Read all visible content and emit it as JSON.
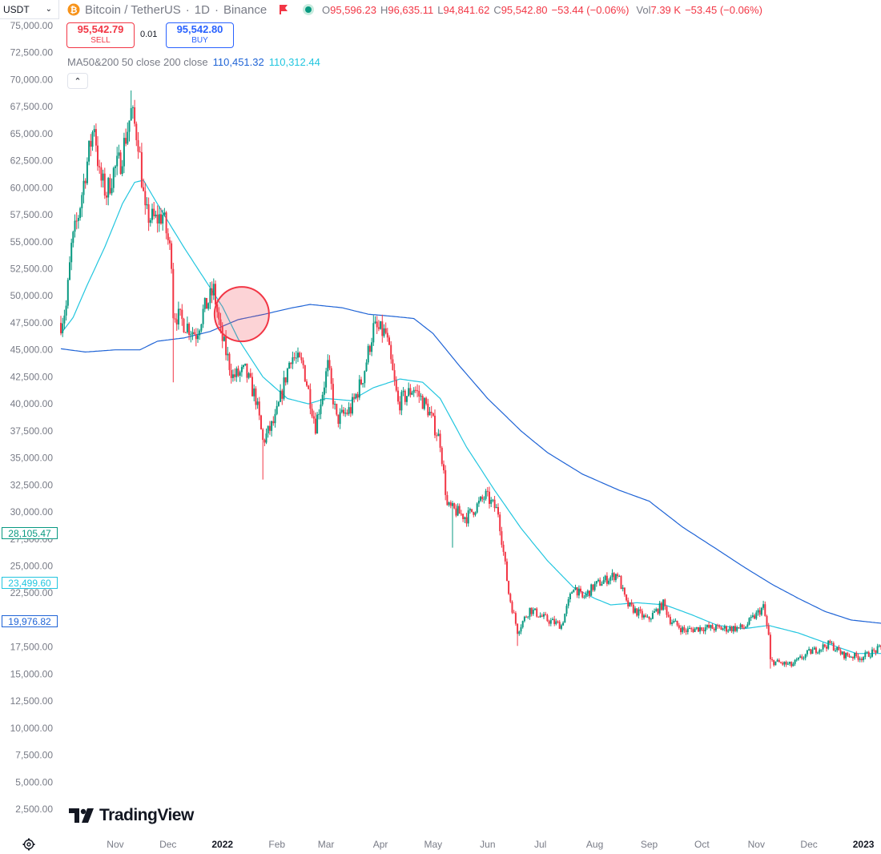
{
  "header": {
    "currency": "USDT",
    "symbol_name": "Bitcoin / TetherUS",
    "interval": "1D",
    "exchange": "Binance",
    "ohlc": {
      "o_label": "O",
      "o": "95,596.23",
      "h_label": "H",
      "h": "96,635.11",
      "l_label": "L",
      "l": "94,841.62",
      "c_label": "C",
      "c": "95,542.80",
      "change": "−53.44 (−0.06%)",
      "vol_label": "Vol",
      "vol": "7.39 K",
      "vol_change": "−53.45 (−0.06%)"
    }
  },
  "trade": {
    "sell_price": "95,542.79",
    "sell_label": "SELL",
    "spread": "0.01",
    "buy_price": "95,542.80",
    "buy_label": "BUY"
  },
  "indicator": {
    "label": "MA50&200 50 close 200 close",
    "ma50_value": "110,451.32",
    "ma200_value": "110,312.44",
    "ma50_color": "#1e63d6",
    "ma200_color": "#22c6df"
  },
  "price_tags": [
    {
      "text": "28,105.47",
      "color": "#089981"
    },
    {
      "text": "23,499.60",
      "color": "#22c6df"
    },
    {
      "text": "19,976.82",
      "color": "#1e63d6"
    }
  ],
  "logo_text": "TradingView",
  "colors": {
    "up": "#089981",
    "down": "#f23645",
    "ma_fast": "#22c6df",
    "ma_slow": "#1e63d6",
    "highlight": "#f23645"
  },
  "chart_data": {
    "type": "candlestick",
    "y_ticks": [
      "75,000.00",
      "72,500.00",
      "70,000.00",
      "67,500.00",
      "65,000.00",
      "62,500.00",
      "60,000.00",
      "57,500.00",
      "55,000.00",
      "52,500.00",
      "50,000.00",
      "47,500.00",
      "45,000.00",
      "42,500.00",
      "40,000.00",
      "37,500.00",
      "35,000.00",
      "32,500.00",
      "30,000.00",
      "27,500.00",
      "25,000.00",
      "22,500.00",
      "20,000.00",
      "17,500.00",
      "15,000.00",
      "12,500.00",
      "10,000.00",
      "7,500.00",
      "5,000.00",
      "2,500.00"
    ],
    "ylim": [
      1000,
      76000
    ],
    "x_ticks": [
      {
        "label": "Nov",
        "date": "2021-11-01"
      },
      {
        "label": "Dec",
        "date": "2021-12-01"
      },
      {
        "label": "2022",
        "date": "2022-01-01",
        "bold": true
      },
      {
        "label": "Feb",
        "date": "2022-02-01"
      },
      {
        "label": "Mar",
        "date": "2022-03-01"
      },
      {
        "label": "Apr",
        "date": "2022-04-01"
      },
      {
        "label": "May",
        "date": "2022-05-01"
      },
      {
        "label": "Jun",
        "date": "2022-06-01"
      },
      {
        "label": "Jul",
        "date": "2022-07-01"
      },
      {
        "label": "Aug",
        "date": "2022-08-01"
      },
      {
        "label": "Sep",
        "date": "2022-09-01"
      },
      {
        "label": "Oct",
        "date": "2022-10-01"
      },
      {
        "label": "Nov",
        "date": "2022-11-01"
      },
      {
        "label": "Dec",
        "date": "2022-12-01"
      },
      {
        "label": "2023",
        "date": "2023-01-01",
        "bold": true
      }
    ],
    "x_start": "2021-10-01",
    "x_end": "2023-01-11",
    "close_anchors": [
      [
        "2021-10-01",
        47500
      ],
      [
        "2021-10-04",
        49000
      ],
      [
        "2021-10-07",
        54500
      ],
      [
        "2021-10-11",
        57500
      ],
      [
        "2021-10-15",
        61500
      ],
      [
        "2021-10-20",
        66000
      ],
      [
        "2021-10-23",
        61000
      ],
      [
        "2021-10-27",
        59500
      ],
      [
        "2021-10-31",
        61500
      ],
      [
        "2021-11-04",
        62500
      ],
      [
        "2021-11-10",
        67000
      ],
      [
        "2021-11-14",
        64500
      ],
      [
        "2021-11-18",
        57500
      ],
      [
        "2021-11-24",
        57000
      ],
      [
        "2021-11-28",
        57500
      ],
      [
        "2021-12-03",
        53500
      ],
      [
        "2021-12-04",
        48500
      ],
      [
        "2021-12-10",
        47500
      ],
      [
        "2021-12-17",
        46500
      ],
      [
        "2021-12-21",
        48500
      ],
      [
        "2021-12-27",
        50500
      ],
      [
        "2021-12-31",
        46500
      ],
      [
        "2022-01-07",
        42500
      ],
      [
        "2022-01-14",
        43000
      ],
      [
        "2022-01-20",
        40500
      ],
      [
        "2022-01-24",
        36500
      ],
      [
        "2022-01-31",
        38500
      ],
      [
        "2022-02-09",
        44500
      ],
      [
        "2022-02-16",
        43500
      ],
      [
        "2022-02-23",
        38000
      ],
      [
        "2022-03-02",
        43500
      ],
      [
        "2022-03-07",
        38500
      ],
      [
        "2022-03-15",
        39500
      ],
      [
        "2022-03-22",
        42500
      ],
      [
        "2022-03-28",
        47000
      ],
      [
        "2022-04-04",
        46500
      ],
      [
        "2022-04-11",
        40000
      ],
      [
        "2022-04-20",
        41500
      ],
      [
        "2022-04-28",
        39500
      ],
      [
        "2022-05-05",
        36500
      ],
      [
        "2022-05-09",
        30500
      ],
      [
        "2022-05-20",
        29500
      ],
      [
        "2022-05-31",
        31500
      ],
      [
        "2022-06-07",
        30000
      ],
      [
        "2022-06-13",
        22500
      ],
      [
        "2022-06-18",
        19000
      ],
      [
        "2022-06-25",
        21000
      ],
      [
        "2022-07-05",
        20000
      ],
      [
        "2022-07-13",
        19500
      ],
      [
        "2022-07-20",
        23200
      ],
      [
        "2022-07-25",
        22000
      ],
      [
        "2022-08-01",
        23200
      ],
      [
        "2022-08-14",
        24300
      ],
      [
        "2022-08-19",
        21500
      ],
      [
        "2022-08-31",
        20000
      ],
      [
        "2022-09-09",
        21500
      ],
      [
        "2022-09-13",
        20000
      ],
      [
        "2022-09-21",
        19000
      ],
      [
        "2022-10-01",
        19300
      ],
      [
        "2022-10-14",
        19200
      ],
      [
        "2022-10-25",
        19300
      ],
      [
        "2022-11-01",
        20500
      ],
      [
        "2022-11-05",
        21200
      ],
      [
        "2022-11-08",
        18500
      ],
      [
        "2022-11-09",
        16200
      ],
      [
        "2022-11-21",
        15800
      ],
      [
        "2022-12-01",
        17000
      ],
      [
        "2022-12-13",
        17800
      ],
      [
        "2022-12-20",
        16800
      ],
      [
        "2022-12-31",
        16550
      ],
      [
        "2023-01-11",
        17400
      ]
    ],
    "ma50_anchors": [
      [
        "2021-10-01",
        46500
      ],
      [
        "2021-10-08",
        48000
      ],
      [
        "2021-10-16",
        51000
      ],
      [
        "2021-10-26",
        54500
      ],
      [
        "2021-11-05",
        58500
      ],
      [
        "2021-11-12",
        60500
      ],
      [
        "2021-11-17",
        60700
      ],
      [
        "2021-11-25",
        58500
      ],
      [
        "2021-12-10",
        54500
      ],
      [
        "2021-12-20",
        52000
      ],
      [
        "2022-01-01",
        49000
      ],
      [
        "2022-01-10",
        46000
      ],
      [
        "2022-01-24",
        42500
      ],
      [
        "2022-02-07",
        40500
      ],
      [
        "2022-02-19",
        40000
      ],
      [
        "2022-03-01",
        40500
      ],
      [
        "2022-03-15",
        40300
      ],
      [
        "2022-03-28",
        41500
      ],
      [
        "2022-04-12",
        42300
      ],
      [
        "2022-04-25",
        42000
      ],
      [
        "2022-05-05",
        40500
      ],
      [
        "2022-05-20",
        36000
      ],
      [
        "2022-06-05",
        32000
      ],
      [
        "2022-06-20",
        28500
      ],
      [
        "2022-07-05",
        25500
      ],
      [
        "2022-07-20",
        23000
      ],
      [
        "2022-08-01",
        22000
      ],
      [
        "2022-08-10",
        21400
      ],
      [
        "2022-08-25",
        21600
      ],
      [
        "2022-09-10",
        21400
      ],
      [
        "2022-09-25",
        20500
      ],
      [
        "2022-10-10",
        19500
      ],
      [
        "2022-10-25",
        19200
      ],
      [
        "2022-11-08",
        19500
      ],
      [
        "2022-11-25",
        18800
      ],
      [
        "2022-12-12",
        17800
      ],
      [
        "2022-12-28",
        16900
      ],
      [
        "2023-01-11",
        16900
      ]
    ],
    "ma200_anchors": [
      [
        "2021-10-01",
        45100
      ],
      [
        "2021-10-15",
        44800
      ],
      [
        "2021-11-01",
        45000
      ],
      [
        "2021-11-15",
        45000
      ],
      [
        "2021-11-25",
        45800
      ],
      [
        "2021-12-10",
        46100
      ],
      [
        "2021-12-25",
        46700
      ],
      [
        "2022-01-10",
        47800
      ],
      [
        "2022-01-25",
        48300
      ],
      [
        "2022-02-10",
        48900
      ],
      [
        "2022-02-20",
        49200
      ],
      [
        "2022-03-10",
        48900
      ],
      [
        "2022-03-25",
        48300
      ],
      [
        "2022-04-08",
        48100
      ],
      [
        "2022-04-20",
        47900
      ],
      [
        "2022-05-01",
        46500
      ],
      [
        "2022-05-15",
        43700
      ],
      [
        "2022-06-01",
        40500
      ],
      [
        "2022-06-20",
        37500
      ],
      [
        "2022-07-05",
        35500
      ],
      [
        "2022-07-25",
        33500
      ],
      [
        "2022-08-15",
        32000
      ],
      [
        "2022-09-01",
        31000
      ],
      [
        "2022-09-20",
        28600
      ],
      [
        "2022-10-10",
        26500
      ],
      [
        "2022-10-25",
        24900
      ],
      [
        "2022-11-10",
        23300
      ],
      [
        "2022-11-25",
        22000
      ],
      [
        "2022-12-10",
        20800
      ],
      [
        "2022-12-25",
        20000
      ],
      [
        "2023-01-11",
        19700
      ]
    ],
    "wicks": [
      {
        "date": "2021-11-10",
        "high": 69000
      },
      {
        "date": "2021-12-04",
        "low": 42000
      },
      {
        "date": "2022-01-24",
        "low": 33000
      },
      {
        "date": "2022-03-28",
        "high": 48200
      },
      {
        "date": "2022-05-12",
        "low": 26700
      },
      {
        "date": "2022-06-18",
        "low": 17600
      },
      {
        "date": "2022-11-09",
        "low": 15500
      }
    ],
    "highlight": {
      "type": "circle",
      "date": "2022-01-12",
      "value": 48300
    }
  }
}
